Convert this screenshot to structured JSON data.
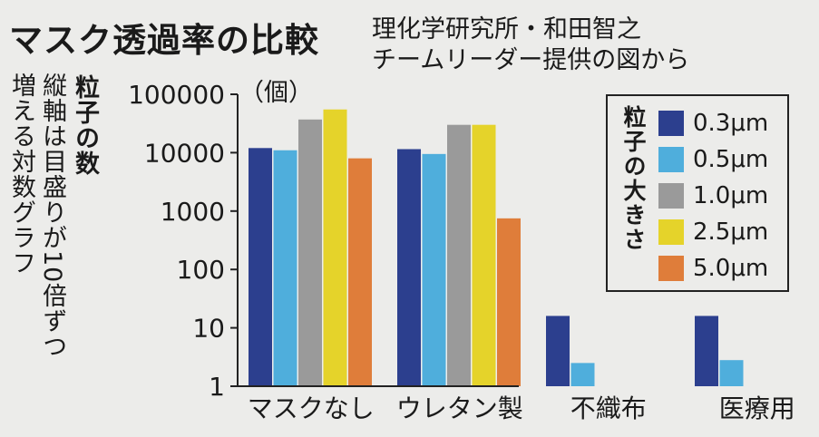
{
  "title": "マスク透過率の比較",
  "source": [
    "理化学研究所・和田智之",
    "チームリーダー提供の図から"
  ],
  "y_axis_note": [
    "増える対数グラフ",
    "縦軸は目盛りが10倍ずつ"
  ],
  "chart_data": {
    "type": "bar",
    "scale": "log",
    "ylabel": "粒子の数",
    "unit": "（個）",
    "ylim": [
      1,
      100000
    ],
    "yticks": [
      "1",
      "10",
      "100",
      "1000",
      "10000",
      "100000"
    ],
    "categories": [
      "マスクなし",
      "ウレタン製",
      "不織布",
      "医療用"
    ],
    "legend_title": "粒子の大きさ",
    "legend_position": "right",
    "series": [
      {
        "name": "0.3μm",
        "color": "#2c3f8e",
        "values": [
          12000,
          11500,
          16,
          16
        ]
      },
      {
        "name": "0.5μm",
        "color": "#4faedc",
        "values": [
          11000,
          9500,
          2.5,
          2.8
        ]
      },
      {
        "name": "1.0μm",
        "color": "#9a9a9a",
        "values": [
          37000,
          30000,
          null,
          null
        ]
      },
      {
        "name": "2.5μm",
        "color": "#e5d32a",
        "values": [
          55000,
          30000,
          null,
          null
        ]
      },
      {
        "name": "5.0μm",
        "color": "#df7d3a",
        "values": [
          8000,
          750,
          null,
          null
        ]
      }
    ]
  }
}
